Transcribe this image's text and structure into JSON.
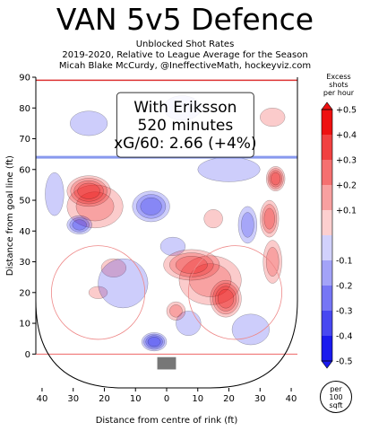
{
  "chart_data": {
    "type": "heatmap",
    "title": "VAN 5v5 Defence",
    "subtitles": [
      "Unblocked Shot Rates",
      "2019-2020, Relative to League Average for the Season",
      "Micah Blake McCurdy, @IneffectiveMath, hockeyviz.com"
    ],
    "annotation": {
      "lines": [
        "With Eriksson",
        "520 minutes",
        "xG/60: 2.66 (+4%)"
      ]
    },
    "xlabel": "Distance from centre of rink (ft)",
    "ylabel": "Distance from goal line (ft)",
    "xlim": [
      -42,
      42
    ],
    "ylim": [
      -11,
      90
    ],
    "x_ticks": [
      "40",
      "30",
      "20",
      "10",
      "0",
      "10",
      "20",
      "30",
      "40"
    ],
    "y_ticks": [
      "0",
      "10",
      "20",
      "30",
      "40",
      "50",
      "60",
      "70",
      "80",
      "90"
    ],
    "colorbar": {
      "title_lines": [
        "Excess",
        "shots",
        "per hour"
      ],
      "ticks": [
        "+0.5",
        "+0.4",
        "+0.3",
        "+0.2",
        "+0.1",
        "-0.1",
        "-0.2",
        "-0.3",
        "-0.4",
        "-0.5"
      ],
      "range": [
        -0.5,
        0.5
      ],
      "pos_color": "#ee1111",
      "neg_color": "#1a1aee"
    },
    "unit_badge": [
      "per",
      "100",
      "sqft"
    ],
    "hotspots": [
      {
        "x": -25,
        "y": 53,
        "value": 0.42,
        "rx": 7,
        "ry": 5
      },
      {
        "x": -23,
        "y": 48,
        "value": 0.2,
        "rx": 9,
        "ry": 7
      },
      {
        "x": 8,
        "y": 29,
        "value": 0.32,
        "rx": 9,
        "ry": 5
      },
      {
        "x": 19,
        "y": 18,
        "value": 0.42,
        "rx": 5,
        "ry": 6
      },
      {
        "x": 14,
        "y": 24,
        "value": 0.22,
        "rx": 10,
        "ry": 8
      },
      {
        "x": 35,
        "y": 57,
        "value": 0.38,
        "rx": 3,
        "ry": 4
      },
      {
        "x": 33,
        "y": 44,
        "value": 0.32,
        "rx": 3,
        "ry": 6
      },
      {
        "x": 34,
        "y": 30,
        "value": 0.2,
        "rx": 3,
        "ry": 7
      },
      {
        "x": 3,
        "y": 14,
        "value": 0.18,
        "rx": 3,
        "ry": 3
      },
      {
        "x": 34,
        "y": 77,
        "value": 0.12,
        "rx": 4,
        "ry": 3
      },
      {
        "x": -17,
        "y": 28,
        "value": 0.12,
        "rx": 4,
        "ry": 3
      },
      {
        "x": -22,
        "y": 20,
        "value": 0.12,
        "rx": 3,
        "ry": 2
      },
      {
        "x": 15,
        "y": 44,
        "value": 0.12,
        "rx": 3,
        "ry": 3
      },
      {
        "x": -5,
        "y": 48,
        "value": -0.32,
        "rx": 6,
        "ry": 5
      },
      {
        "x": -28,
        "y": 42,
        "value": -0.3,
        "rx": 4,
        "ry": 3
      },
      {
        "x": -4,
        "y": 4,
        "value": -0.4,
        "rx": 4,
        "ry": 3
      },
      {
        "x": -14,
        "y": 23,
        "value": -0.15,
        "rx": 8,
        "ry": 8
      },
      {
        "x": 20,
        "y": 60,
        "value": -0.15,
        "rx": 10,
        "ry": 4
      },
      {
        "x": -25,
        "y": 75,
        "value": -0.12,
        "rx": 6,
        "ry": 4
      },
      {
        "x": 5,
        "y": 80,
        "value": -0.12,
        "rx": 6,
        "ry": 4
      },
      {
        "x": 27,
        "y": 8,
        "value": -0.12,
        "rx": 6,
        "ry": 5
      },
      {
        "x": 7,
        "y": 10,
        "value": -0.12,
        "rx": 4,
        "ry": 4
      },
      {
        "x": 26,
        "y": 42,
        "value": -0.18,
        "rx": 3,
        "ry": 6
      },
      {
        "x": -36,
        "y": 52,
        "value": -0.12,
        "rx": 3,
        "ry": 7
      },
      {
        "x": 2,
        "y": 35,
        "value": -0.12,
        "rx": 4,
        "ry": 3
      }
    ]
  }
}
